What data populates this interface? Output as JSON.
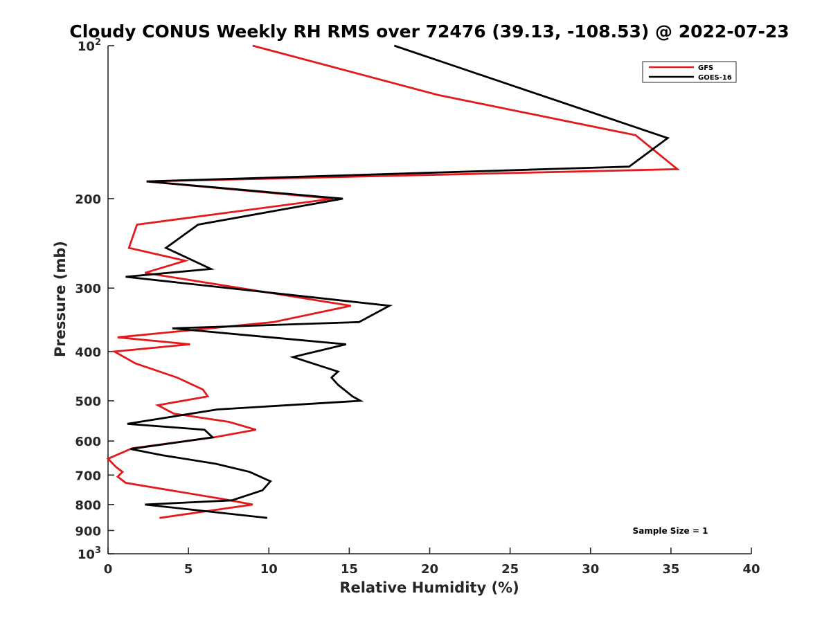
{
  "chart_data": {
    "type": "line",
    "title": "Cloudy CONUS Weekly RH RMS over 72476 (39.13, -108.53) @ 2022-07-23",
    "xlabel": "Relative Humidity (%)",
    "ylabel": "Pressure (mb)",
    "xlim": [
      0,
      40
    ],
    "ylim": [
      100,
      1000
    ],
    "yscale": "log",
    "y_reversed": true,
    "xticks": [
      0,
      5,
      10,
      15,
      20,
      25,
      30,
      35,
      40
    ],
    "xtick_labels": [
      "0",
      "5",
      "10",
      "15",
      "20",
      "25",
      "30",
      "35",
      "40"
    ],
    "yticks": [
      {
        "value": 100,
        "base": "10",
        "exp": "2"
      },
      {
        "value": 200,
        "label": "200"
      },
      {
        "value": 300,
        "label": "300"
      },
      {
        "value": 400,
        "label": "400"
      },
      {
        "value": 500,
        "label": "500"
      },
      {
        "value": 600,
        "label": "600"
      },
      {
        "value": 700,
        "label": "700"
      },
      {
        "value": 800,
        "label": "800"
      },
      {
        "value": 900,
        "label": "900"
      },
      {
        "value": 1000,
        "base": "10",
        "exp": "3"
      }
    ],
    "grid": false,
    "legend_position": "top-right",
    "annotation": "Sample Size = 1",
    "series": [
      {
        "name": "GFS",
        "color": "#e31a1c",
        "points": [
          {
            "x": 9.0,
            "y": 100
          },
          {
            "x": 20.5,
            "y": 125
          },
          {
            "x": 32.8,
            "y": 150
          },
          {
            "x": 35.4,
            "y": 175
          },
          {
            "x": 2.4,
            "y": 185
          },
          {
            "x": 14.0,
            "y": 200
          },
          {
            "x": 1.8,
            "y": 225
          },
          {
            "x": 1.3,
            "y": 250
          },
          {
            "x": 4.8,
            "y": 265
          },
          {
            "x": 2.3,
            "y": 280
          },
          {
            "x": 15.1,
            "y": 325
          },
          {
            "x": 10.3,
            "y": 350
          },
          {
            "x": 0.6,
            "y": 375
          },
          {
            "x": 5.1,
            "y": 387
          },
          {
            "x": 0.4,
            "y": 400
          },
          {
            "x": 1.7,
            "y": 422
          },
          {
            "x": 4.3,
            "y": 450
          },
          {
            "x": 5.9,
            "y": 475
          },
          {
            "x": 6.2,
            "y": 490
          },
          {
            "x": 3.1,
            "y": 510
          },
          {
            "x": 4.1,
            "y": 530
          },
          {
            "x": 7.5,
            "y": 550
          },
          {
            "x": 9.2,
            "y": 570
          },
          {
            "x": 6.6,
            "y": 590
          },
          {
            "x": 1.5,
            "y": 620
          },
          {
            "x": 0.0,
            "y": 650
          },
          {
            "x": 0.5,
            "y": 675
          },
          {
            "x": 0.9,
            "y": 690
          },
          {
            "x": 0.6,
            "y": 705
          },
          {
            "x": 1.1,
            "y": 725
          },
          {
            "x": 7.1,
            "y": 780
          },
          {
            "x": 9.0,
            "y": 800
          },
          {
            "x": 3.2,
            "y": 850
          }
        ]
      },
      {
        "name": "GOES-16",
        "color": "#000000",
        "points": [
          {
            "x": 17.8,
            "y": 100
          },
          {
            "x": 34.8,
            "y": 152
          },
          {
            "x": 32.4,
            "y": 173
          },
          {
            "x": 2.4,
            "y": 185
          },
          {
            "x": 14.6,
            "y": 200
          },
          {
            "x": 5.6,
            "y": 225
          },
          {
            "x": 3.6,
            "y": 250
          },
          {
            "x": 6.4,
            "y": 275
          },
          {
            "x": 1.1,
            "y": 285
          },
          {
            "x": 17.5,
            "y": 325
          },
          {
            "x": 15.6,
            "y": 350
          },
          {
            "x": 4.0,
            "y": 360
          },
          {
            "x": 14.8,
            "y": 387
          },
          {
            "x": 11.5,
            "y": 410
          },
          {
            "x": 14.3,
            "y": 438
          },
          {
            "x": 13.9,
            "y": 450
          },
          {
            "x": 14.3,
            "y": 465
          },
          {
            "x": 15.2,
            "y": 490
          },
          {
            "x": 15.7,
            "y": 500
          },
          {
            "x": 6.8,
            "y": 520
          },
          {
            "x": 1.2,
            "y": 555
          },
          {
            "x": 6.0,
            "y": 570
          },
          {
            "x": 6.5,
            "y": 590
          },
          {
            "x": 1.4,
            "y": 622
          },
          {
            "x": 3.4,
            "y": 640
          },
          {
            "x": 6.7,
            "y": 665
          },
          {
            "x": 8.8,
            "y": 690
          },
          {
            "x": 10.1,
            "y": 720
          },
          {
            "x": 9.6,
            "y": 750
          },
          {
            "x": 7.7,
            "y": 785
          },
          {
            "x": 2.3,
            "y": 800
          },
          {
            "x": 9.9,
            "y": 850
          }
        ]
      }
    ]
  }
}
